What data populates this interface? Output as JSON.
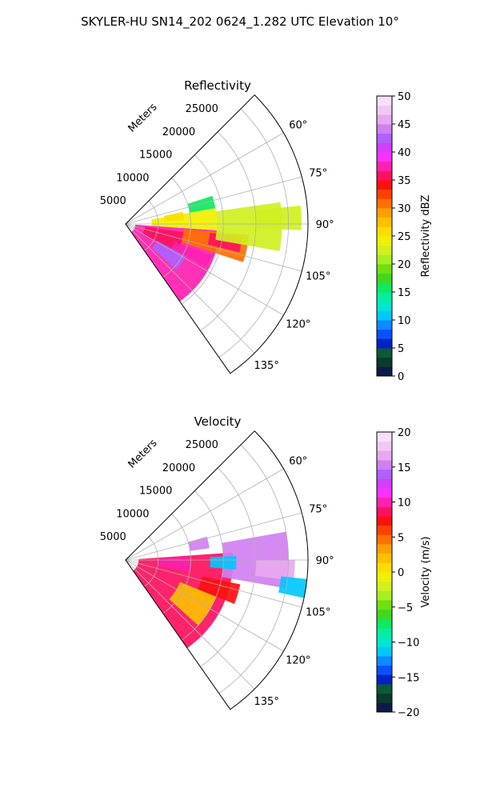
{
  "title": "SKYLER-HU  SN14_202  0624_1.282 UTC Elevation 10°",
  "chart_data": [
    {
      "type": "heatmap",
      "projection": "polar-sector",
      "title": "Reflectivity",
      "radial_label": "Meters",
      "range_ticks": [
        5000,
        10000,
        15000,
        20000,
        25000
      ],
      "range_labels": [
        "5000",
        "10000",
        "15000",
        "20000",
        "25000"
      ],
      "range_max": 28000,
      "azimuth_range": [
        45,
        145
      ],
      "azimuth_ticks": [
        60,
        75,
        90,
        105,
        120,
        135
      ],
      "azimuth_labels": [
        "60°",
        "75°",
        "90°",
        "105°",
        "120°",
        "135°"
      ],
      "grid": true,
      "colorbar": {
        "label": "Reflectivity dBZ",
        "min": 0,
        "max": 50,
        "ticks": [
          0,
          5,
          10,
          15,
          20,
          25,
          30,
          35,
          40,
          45,
          50
        ],
        "tick_labels": [
          "0",
          "5",
          "10",
          "15",
          "20",
          "25",
          "30",
          "35",
          "40",
          "45",
          "50"
        ],
        "colors": [
          "#0d1b4b",
          "#0b3a2e",
          "#0b5a3a",
          "#0022c8",
          "#0a50ff",
          "#0b8cff",
          "#00c8ff",
          "#00e8d0",
          "#00f0a0",
          "#10e860",
          "#40d820",
          "#70e010",
          "#a8f020",
          "#d0f020",
          "#f0f000",
          "#ffdc00",
          "#ffc000",
          "#ffa000",
          "#ff7000",
          "#ff4000",
          "#ff1010",
          "#ff1060",
          "#ff20b0",
          "#ff30ff",
          "#d040ff",
          "#b060ff",
          "#d080f0",
          "#e8a8f0",
          "#f0c8f4",
          "#f8e0fa"
        ]
      },
      "regions": [
        {
          "az": [
            94,
            145
          ],
          "r": [
            1500,
            14500
          ],
          "value": 38
        },
        {
          "az": [
            98,
            120
          ],
          "r": [
            3000,
            9000
          ],
          "value": 36
        },
        {
          "az": [
            118,
            132
          ],
          "r": [
            5500,
            10500
          ],
          "value": 42
        },
        {
          "az": [
            110,
            118
          ],
          "r": [
            8000,
            14000
          ],
          "value": 38
        },
        {
          "az": [
            95,
            108
          ],
          "r": [
            9000,
            19000
          ],
          "value": 30
        },
        {
          "az": [
            96,
            104
          ],
          "r": [
            13000,
            18000
          ],
          "value": 36
        },
        {
          "az": [
            80,
            94
          ],
          "r": [
            4000,
            14000
          ],
          "value": 24
        },
        {
          "az": [
            82,
            100
          ],
          "r": [
            14000,
            24000
          ],
          "value": 22
        },
        {
          "az": [
            84,
            92
          ],
          "r": [
            20000,
            27000
          ],
          "value": 22
        },
        {
          "az": [
            72,
            80
          ],
          "r": [
            10000,
            14000
          ],
          "value": 16
        },
        {
          "az": [
            78,
            86
          ],
          "r": [
            6000,
            9000
          ],
          "value": 26
        }
      ]
    },
    {
      "type": "heatmap",
      "projection": "polar-sector",
      "title": "Velocity",
      "radial_label": "Meters",
      "range_ticks": [
        5000,
        10000,
        15000,
        20000,
        25000
      ],
      "range_labels": [
        "5000",
        "10000",
        "15000",
        "20000",
        "25000"
      ],
      "range_max": 28000,
      "azimuth_range": [
        45,
        145
      ],
      "azimuth_ticks": [
        60,
        75,
        90,
        105,
        120,
        135
      ],
      "azimuth_labels": [
        "60°",
        "75°",
        "90°",
        "105°",
        "120°",
        "135°"
      ],
      "grid": true,
      "colorbar": {
        "label": "Velocity (m/s)",
        "min": -20,
        "max": 20,
        "ticks": [
          -20,
          -15,
          -10,
          -5,
          0,
          5,
          10,
          15,
          20
        ],
        "tick_labels": [
          "−20",
          "−15",
          "−10",
          "−5",
          "0",
          "5",
          "10",
          "15",
          "20"
        ],
        "colors": [
          "#0d1b4b",
          "#0b3a2e",
          "#0b5a3a",
          "#0022c8",
          "#0a50ff",
          "#0b8cff",
          "#00c8ff",
          "#00e8d0",
          "#00f0a0",
          "#10e860",
          "#40d820",
          "#70e010",
          "#a8f020",
          "#d0f020",
          "#f0f000",
          "#ffdc00",
          "#ffc000",
          "#ffa000",
          "#ff7000",
          "#ff4000",
          "#ff1010",
          "#ff1060",
          "#ff20b0",
          "#ff30ff",
          "#d040ff",
          "#b060ff",
          "#d080f0",
          "#e8a8f0",
          "#f0c8f4",
          "#f8e0fa"
        ]
      },
      "regions": [
        {
          "az": [
            86,
            145
          ],
          "r": [
            2000,
            16500
          ],
          "value": 9
        },
        {
          "az": [
            88,
            100
          ],
          "r": [
            5000,
            10000
          ],
          "value": 10
        },
        {
          "az": [
            112,
            132
          ],
          "r": [
            9000,
            15000
          ],
          "value": 2
        },
        {
          "az": [
            102,
            112
          ],
          "r": [
            12000,
            18000
          ],
          "value": 7
        },
        {
          "az": [
            80,
            100
          ],
          "r": [
            15000,
            25000
          ],
          "value": 15
        },
        {
          "az": [
            90,
            97
          ],
          "r": [
            20000,
            26000
          ],
          "value": 16
        },
        {
          "az": [
            88,
            95
          ],
          "r": [
            13000,
            17000
          ],
          "value": -12
        },
        {
          "az": [
            74,
            82
          ],
          "r": [
            10000,
            13000
          ],
          "value": 15
        },
        {
          "az": [
            96,
            102
          ],
          "r": [
            24000,
            28000
          ],
          "value": -12
        }
      ]
    }
  ]
}
